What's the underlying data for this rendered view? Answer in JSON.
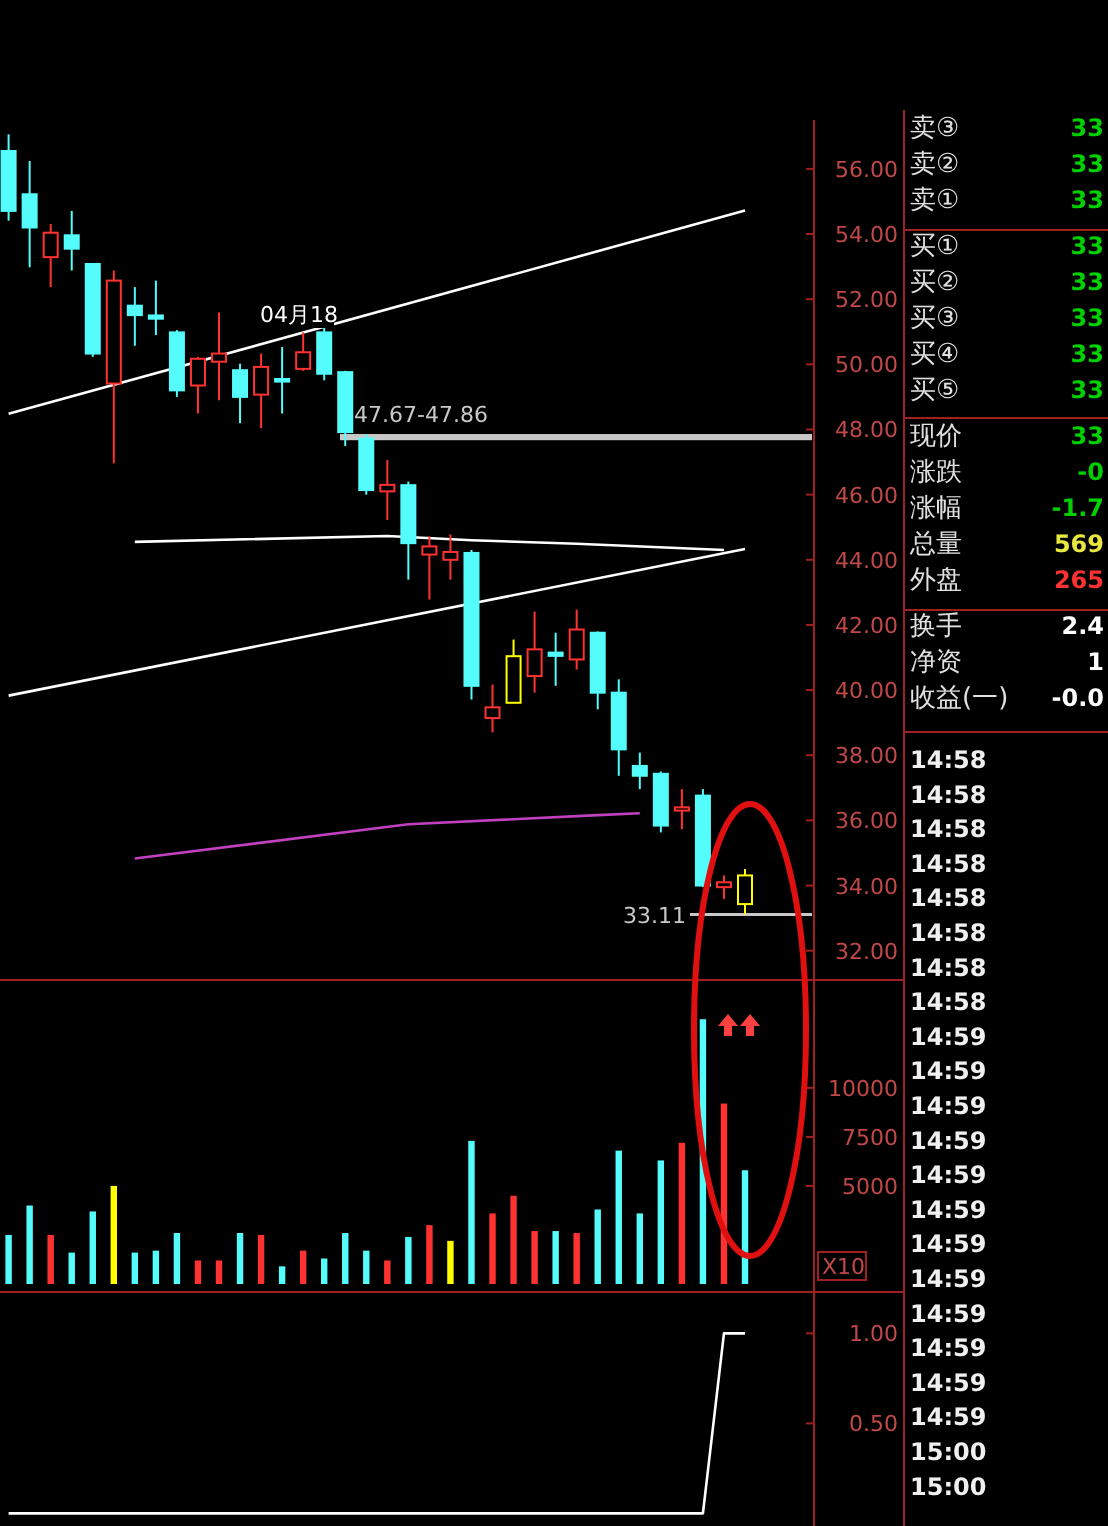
{
  "chart_data": [
    {
      "type": "candlestick",
      "categories": [
        null,
        null,
        null,
        null,
        null,
        null,
        null,
        null,
        null,
        null,
        null,
        null,
        null,
        null,
        null,
        null,
        null,
        null,
        null,
        null,
        null,
        null,
        null,
        null,
        null,
        null,
        null,
        null,
        null,
        null,
        null,
        null,
        null,
        null,
        null,
        null
      ],
      "ohlc": [
        [
          56.55,
          57.06,
          54.41,
          54.71
        ],
        [
          55.22,
          56.24,
          52.98,
          54.2
        ],
        [
          53.29,
          54.31,
          52.37,
          54.04
        ],
        [
          53.96,
          54.71,
          52.88,
          53.55
        ],
        [
          53.08,
          53.1,
          50.23,
          50.33
        ],
        [
          49.41,
          52.88,
          46.96,
          52.57
        ],
        [
          51.8,
          52.37,
          50.57,
          51.51
        ],
        [
          51.5,
          52.57,
          50.9,
          51.4
        ],
        [
          50.98,
          51.05,
          49.0,
          49.2
        ],
        [
          49.35,
          50.23,
          48.49,
          50.17
        ],
        [
          50.08,
          51.59,
          48.9,
          50.33
        ],
        [
          49.82,
          50.02,
          48.19,
          49.0
        ],
        [
          49.07,
          50.33,
          48.04,
          49.92
        ],
        [
          49.55,
          50.53,
          48.49,
          49.47
        ],
        [
          49.86,
          50.98,
          49.8,
          50.37
        ],
        [
          50.98,
          51.14,
          49.51,
          49.71
        ],
        [
          49.76,
          49.8,
          47.49,
          47.92
        ],
        [
          47.72,
          47.86,
          46.0,
          46.14
        ],
        [
          46.1,
          47.06,
          45.22,
          46.3
        ],
        [
          46.29,
          46.4,
          43.39,
          44.51
        ],
        [
          44.16,
          44.72,
          42.78,
          44.41
        ],
        [
          44.0,
          44.78,
          43.39,
          44.24
        ],
        [
          44.21,
          44.3,
          39.71,
          40.13
        ],
        [
          39.14,
          40.17,
          38.7,
          39.47
        ],
        [
          39.61,
          41.55,
          39.6,
          41.04
        ],
        [
          40.43,
          42.41,
          39.92,
          41.25
        ],
        [
          41.15,
          41.76,
          40.13,
          41.05
        ],
        [
          40.94,
          42.47,
          40.63,
          41.86
        ],
        [
          41.76,
          41.8,
          39.41,
          39.92
        ],
        [
          39.92,
          40.33,
          37.37,
          38.18
        ],
        [
          37.67,
          38.08,
          36.96,
          37.37
        ],
        [
          37.43,
          37.5,
          35.63,
          35.84
        ],
        [
          36.3,
          36.96,
          35.73,
          36.4
        ],
        [
          36.76,
          36.96,
          33.95,
          34.0
        ],
        [
          33.95,
          34.31,
          33.59,
          34.1
        ],
        [
          33.43,
          34.51,
          33.11,
          34.31
        ]
      ],
      "colors": [
        "#54fcfc",
        "#54fcfc",
        "#ff3232",
        "#54fcfc",
        "#54fcfc",
        "#ff3232",
        "#54fcfc",
        "#54fcfc",
        "#54fcfc",
        "#ff3232",
        "#ff3232",
        "#54fcfc",
        "#ff3232",
        "#54fcfc",
        "#ff3232",
        "#54fcfc",
        "#54fcfc",
        "#54fcfc",
        "#ff3232",
        "#54fcfc",
        "#ff3232",
        "#ff3232",
        "#54fcfc",
        "#ff3232",
        "#ffff00",
        "#ff3232",
        "#54fcfc",
        "#ff3232",
        "#54fcfc",
        "#54fcfc",
        "#54fcfc",
        "#54fcfc",
        "#ff3232",
        "#54fcfc",
        "#ff3232",
        "#ffff00"
      ],
      "series": [
        {
          "type": "line",
          "color": "#ffffff",
          "values": [
            48.48,
            null,
            null,
            null,
            null,
            null,
            null,
            null,
            null,
            null,
            null,
            null,
            null,
            null,
            null,
            null,
            null,
            null,
            null,
            null,
            null,
            null,
            null,
            null,
            null,
            null,
            null,
            null,
            null,
            null,
            null,
            null,
            null,
            null,
            null,
            54.72
          ]
        },
        {
          "type": "line",
          "color": "#ffffff",
          "values": [
            39.83,
            null,
            null,
            null,
            null,
            null,
            null,
            null,
            null,
            null,
            null,
            null,
            null,
            null,
            null,
            null,
            null,
            null,
            null,
            null,
            null,
            null,
            null,
            null,
            null,
            null,
            null,
            null,
            null,
            null,
            null,
            null,
            null,
            null,
            null,
            44.33
          ]
        },
        {
          "type": "line",
          "color": "#ffffff",
          "values": [
            null,
            null,
            null,
            null,
            null,
            null,
            44.55,
            null,
            null,
            null,
            null,
            null,
            null,
            null,
            null,
            null,
            null,
            null,
            44.73,
            null,
            null,
            null,
            44.6,
            null,
            null,
            null,
            null,
            44.49,
            null,
            null,
            null,
            null,
            null,
            null,
            44.3,
            null
          ]
        },
        {
          "type": "line",
          "color": "#c040c0",
          "values": [
            null,
            null,
            null,
            null,
            null,
            null,
            34.83,
            null,
            null,
            null,
            null,
            null,
            null,
            null,
            null,
            null,
            null,
            null,
            null,
            35.88,
            null,
            null,
            null,
            null,
            null,
            null,
            null,
            null,
            36.16,
            null,
            36.22,
            null,
            null,
            null,
            null,
            null
          ]
        }
      ],
      "ylim": [
        31.1,
        57.5
      ],
      "yticks": [
        {
          "value": 32,
          "label": "32.00"
        },
        {
          "value": 34,
          "label": "34.00"
        },
        {
          "value": 36,
          "label": "36.00"
        },
        {
          "value": 38,
          "label": "38.00"
        },
        {
          "value": 40,
          "label": "40.00"
        },
        {
          "value": 42,
          "label": "42.00"
        },
        {
          "value": 44,
          "label": "44.00"
        },
        {
          "value": 46,
          "label": "46.00"
        },
        {
          "value": 48,
          "label": "48.00"
        },
        {
          "value": 50,
          "label": "50.00"
        },
        {
          "value": 52,
          "label": "52.00"
        },
        {
          "value": 54,
          "label": "54.00"
        },
        {
          "value": 56,
          "label": "56.00"
        }
      ],
      "bands": [
        {
          "axis": "y",
          "from": 47.67,
          "to": 47.86,
          "label": "47.67-47.86",
          "color": "#c8c8c8"
        }
      ],
      "ref_lines": [
        {
          "axis": "y",
          "value": 33.11,
          "label": "33.11",
          "color": "#c8c8c8"
        }
      ],
      "annotations": [
        "04月18"
      ],
      "tick_labels": "y"
    },
    {
      "type": "bar",
      "categories": [
        null,
        null,
        null,
        null,
        null,
        null,
        null,
        null,
        null,
        null,
        null,
        null,
        null,
        null,
        null,
        null,
        null,
        null,
        null,
        null,
        null,
        null,
        null,
        null,
        null,
        null,
        null,
        null,
        null,
        null,
        null,
        null,
        null,
        null,
        null,
        null
      ],
      "values": [
        2500,
        4000,
        2500,
        1600,
        3700,
        5000,
        1600,
        1700,
        2600,
        1200,
        1200,
        2600,
        2500,
        900,
        1700,
        1300,
        2600,
        1700,
        1200,
        2400,
        3000,
        2200,
        7300,
        3600,
        4500,
        2700,
        2700,
        2600,
        3800,
        6800,
        3600,
        6300,
        7200,
        13500,
        9200,
        5800
      ],
      "colors": [
        "#54fcfc",
        "#54fcfc",
        "#ff3232",
        "#54fcfc",
        "#54fcfc",
        "#ffff00",
        "#54fcfc",
        "#54fcfc",
        "#54fcfc",
        "#ff3232",
        "#ff3232",
        "#54fcfc",
        "#ff3232",
        "#54fcfc",
        "#ff3232",
        "#54fcfc",
        "#54fcfc",
        "#54fcfc",
        "#ff3232",
        "#54fcfc",
        "#ff3232",
        "#ffff00",
        "#54fcfc",
        "#ff3232",
        "#ff3232",
        "#ff3232",
        "#54fcfc",
        "#ff3232",
        "#54fcfc",
        "#54fcfc",
        "#54fcfc",
        "#54fcfc",
        "#ff3232",
        "#54fcfc",
        "#ff3232",
        "#54fcfc"
      ],
      "ylim": [
        0,
        15500
      ],
      "yticks": [
        5000,
        7500,
        10000
      ],
      "annotations": [
        "X10"
      ],
      "tick_labels": "y"
    },
    {
      "type": "line",
      "categories": [
        null,
        null,
        null,
        null,
        null,
        null,
        null,
        null,
        null,
        null,
        null,
        null,
        null,
        null,
        null,
        null,
        null,
        null,
        null,
        null,
        null,
        null,
        null,
        null,
        null,
        null,
        null,
        null,
        null,
        null,
        null,
        null,
        null,
        null,
        null,
        null
      ],
      "values": [
        0,
        0,
        0,
        0,
        0,
        0,
        0,
        0,
        0,
        0,
        0,
        0,
        0,
        0,
        0,
        0,
        0,
        0,
        0,
        0,
        0,
        0,
        0,
        0,
        0,
        0,
        0,
        0,
        0,
        0,
        0,
        0,
        0,
        0,
        1,
        1
      ],
      "color": "#ffffff",
      "ylim": [
        -0.07,
        1.23
      ],
      "yticks": [
        {
          "value": 0.5,
          "label": "0.50"
        },
        {
          "value": 1,
          "label": "1.00"
        }
      ],
      "tick_labels": "y"
    },
    {
      "type": "other",
      "categories": [
        "卖③",
        "卖②",
        "卖①",
        "买①",
        "买②",
        "买③",
        "买④",
        "买⑤",
        "现价",
        "涨跌",
        "涨幅",
        "总量",
        "外盘",
        "换手",
        "净资",
        "收益(一)"
      ],
      "value_labels": [
        "33",
        "33",
        "33",
        "33",
        "33",
        "33",
        "33",
        "33",
        "33",
        "-0",
        "-1.7",
        "569",
        "265",
        "2.4",
        "1",
        "-0.0"
      ],
      "colors": [
        "#00d000",
        "#00d000",
        "#00d000",
        "#00d000",
        "#00d000",
        "#00d000",
        "#00d000",
        "#00d000",
        "#00d000",
        "#00d000",
        "#00d000",
        "#e8e840",
        "#ff3232",
        "#ffffff",
        "#ffffff",
        "#ffffff"
      ],
      "annotations": [
        "14:58",
        "14:58",
        "14:58",
        "14:58",
        "14:58",
        "14:58",
        "14:58",
        "14:58",
        "14:59",
        "14:59",
        "14:59",
        "14:59",
        "14:59",
        "14:59",
        "14:59",
        "14:59",
        "14:59",
        "14:59",
        "14:59",
        "14:59",
        "15:00",
        "15:00"
      ]
    }
  ]
}
